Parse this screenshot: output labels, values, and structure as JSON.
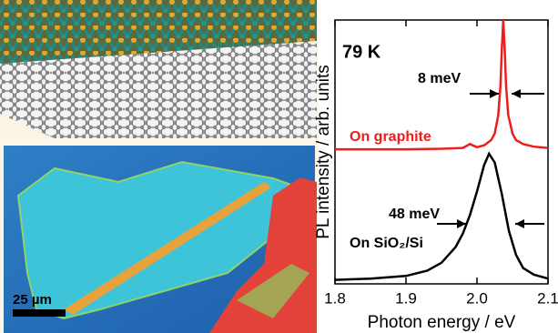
{
  "chart_data": {
    "type": "line",
    "xlabel": "Photon energy / eV",
    "ylabel": "PL intensity / arb. units",
    "xlim": [
      1.8,
      2.1
    ],
    "xticks": [
      1.8,
      1.9,
      {
        "value": 2,
        "label": "2.0"
      },
      2.1
    ],
    "ylim": [
      0,
      10
    ],
    "annotations": [
      "79 K",
      "8 meV",
      "48 meV"
    ],
    "series": [
      {
        "name": "On graphite",
        "color": "#ee1c1c",
        "x": [
          1.8,
          1.85,
          1.9,
          1.95,
          1.98,
          1.99,
          2.0,
          2.01,
          2.02,
          2.025,
          2.03,
          2.033,
          2.035,
          2.037,
          2.039,
          2.041,
          2.044,
          2.05,
          2.055,
          2.065,
          2.08,
          2.1
        ],
        "values": [
          5.1,
          5.1,
          5.1,
          5.12,
          5.15,
          5.3,
          5.18,
          5.25,
          5.45,
          5.7,
          6.4,
          7.5,
          8.9,
          10,
          8.9,
          7.5,
          6.4,
          5.7,
          5.45,
          5.3,
          5.2,
          5.15
        ]
      },
      {
        "name": "On SiO₂/Si",
        "color": "#000000",
        "x": [
          1.8,
          1.85,
          1.9,
          1.93,
          1.95,
          1.97,
          1.98,
          1.99,
          2.0,
          2.01,
          2.017,
          2.025,
          2.035,
          2.045,
          2.055,
          2.065,
          2.08,
          2.1
        ],
        "values": [
          0.15,
          0.2,
          0.3,
          0.5,
          0.8,
          1.4,
          1.9,
          2.6,
          3.5,
          4.5,
          4.93,
          4.6,
          3.4,
          2.0,
          1.1,
          0.6,
          0.35,
          0.2
        ]
      }
    ]
  },
  "image_labels": {
    "scale_bar": "25 µm"
  }
}
